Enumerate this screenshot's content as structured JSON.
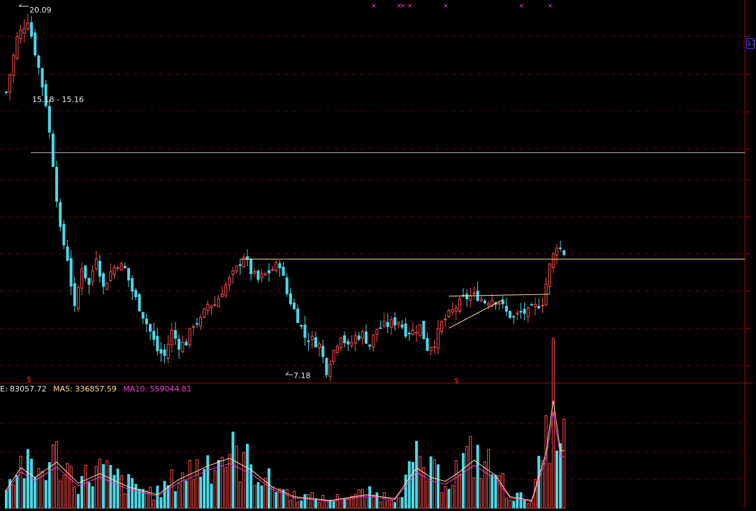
{
  "colors": {
    "background": "#000000",
    "up": "#ff4d4d",
    "down": "#4dd8e8",
    "grid": "#7a0000",
    "frame": "#b00000",
    "level_line": "#ffe08a",
    "label": "#e8e8e8",
    "ma5": "#ffffff",
    "ma10": "#ff3ad8",
    "vol_e": "#e8e8e8",
    "marker": "#ff3ad8",
    "signal": "#ff2020"
  },
  "annotations": {
    "high_label": "20.09",
    "low_label": "7.18",
    "range_label": "15.18 - 15.16",
    "axis_tag": "17",
    "signal_mark": "$"
  },
  "volume_legend": {
    "e_label": "E: 83057.72",
    "ma5_label": "MA5: 336857.59",
    "ma10_label": "MA10: 559044.81"
  },
  "chart_data": {
    "type": "candlestick",
    "price_range": [
      6.7,
      20.8
    ],
    "volume_range": [
      0,
      560000
    ],
    "keypoints": [
      [
        0,
        17.4
      ],
      [
        3,
        19.4
      ],
      [
        6,
        20.09
      ],
      [
        9,
        18.3
      ],
      [
        11,
        17.0
      ],
      [
        13,
        14.8
      ],
      [
        15,
        12.3
      ],
      [
        17,
        11.3
      ],
      [
        19,
        9.4
      ],
      [
        21,
        11.0
      ],
      [
        23,
        10.3
      ],
      [
        25,
        11.4
      ],
      [
        27,
        10.2
      ],
      [
        29,
        10.8
      ],
      [
        31,
        11.1
      ],
      [
        33,
        10.9
      ],
      [
        35,
        10.1
      ],
      [
        38,
        9.2
      ],
      [
        40,
        8.6
      ],
      [
        42,
        7.9
      ],
      [
        44,
        7.7
      ],
      [
        46,
        8.6
      ],
      [
        48,
        8.1
      ],
      [
        50,
        8.2
      ],
      [
        52,
        8.9
      ],
      [
        54,
        9.0
      ],
      [
        56,
        9.6
      ],
      [
        58,
        9.6
      ],
      [
        60,
        10.1
      ],
      [
        62,
        10.5
      ],
      [
        64,
        10.9
      ],
      [
        66,
        11.4
      ],
      [
        68,
        10.8
      ],
      [
        70,
        10.5
      ],
      [
        72,
        10.7
      ],
      [
        74,
        10.9
      ],
      [
        76,
        11.1
      ],
      [
        78,
        10.0
      ],
      [
        81,
        9.1
      ],
      [
        83,
        8.4
      ],
      [
        85,
        8.3
      ],
      [
        87,
        8.1
      ],
      [
        89,
        7.18
      ],
      [
        91,
        7.9
      ],
      [
        93,
        8.5
      ],
      [
        95,
        8.0
      ],
      [
        97,
        8.4
      ],
      [
        99,
        8.5
      ],
      [
        101,
        8.1
      ],
      [
        103,
        8.7
      ],
      [
        105,
        8.8
      ],
      [
        107,
        8.9
      ],
      [
        109,
        9.0
      ],
      [
        111,
        8.6
      ],
      [
        113,
        8.6
      ],
      [
        115,
        8.8
      ],
      [
        117,
        8.0
      ],
      [
        119,
        8.2
      ],
      [
        121,
        8.9
      ],
      [
        123,
        9.2
      ],
      [
        125,
        9.5
      ],
      [
        127,
        9.8
      ],
      [
        129,
        9.9
      ],
      [
        131,
        9.9
      ],
      [
        133,
        9.7
      ],
      [
        135,
        9.8
      ],
      [
        137,
        9.7
      ],
      [
        139,
        9.3
      ],
      [
        141,
        9.1
      ],
      [
        143,
        9.3
      ],
      [
        145,
        9.3
      ],
      [
        147,
        9.5
      ],
      [
        149,
        9.7
      ],
      [
        151,
        11.0
      ],
      [
        153,
        11.8
      ],
      [
        155,
        11.5
      ]
    ],
    "level_lines": [
      {
        "name": "upper-range",
        "y": 15.18
      },
      {
        "name": "resistance",
        "y": 11.26
      }
    ],
    "trend_lines": [
      {
        "name": "triangle-top",
        "from": [
          123,
          9.9
        ],
        "to": [
          151,
          9.97
        ]
      },
      {
        "name": "triangle-bottom",
        "from": [
          123,
          8.72
        ],
        "to": [
          138,
          9.77
        ]
      }
    ],
    "volume": {
      "series": [
        {
          "name": "MA5",
          "color": "#ffffff"
        },
        {
          "name": "MA10",
          "color": "#ff3ad8"
        }
      ],
      "keypoints": [
        [
          0,
          95000
        ],
        [
          4,
          210000
        ],
        [
          8,
          160000
        ],
        [
          14,
          240000
        ],
        [
          20,
          130000
        ],
        [
          26,
          180000
        ],
        [
          34,
          110000
        ],
        [
          42,
          70000
        ],
        [
          48,
          150000
        ],
        [
          56,
          220000
        ],
        [
          62,
          260000
        ],
        [
          68,
          200000
        ],
        [
          74,
          110000
        ],
        [
          80,
          60000
        ],
        [
          90,
          40000
        ],
        [
          100,
          70000
        ],
        [
          108,
          50000
        ],
        [
          114,
          210000
        ],
        [
          118,
          160000
        ],
        [
          122,
          140000
        ],
        [
          126,
          190000
        ],
        [
          130,
          250000
        ],
        [
          136,
          170000
        ],
        [
          140,
          60000
        ],
        [
          146,
          40000
        ],
        [
          150,
          290000
        ],
        [
          152,
          560000
        ],
        [
          154,
          300000
        ]
      ]
    },
    "markers": {
      "top_x_positions": [
        102,
        109,
        110,
        112,
        122,
        143,
        151
      ]
    }
  }
}
